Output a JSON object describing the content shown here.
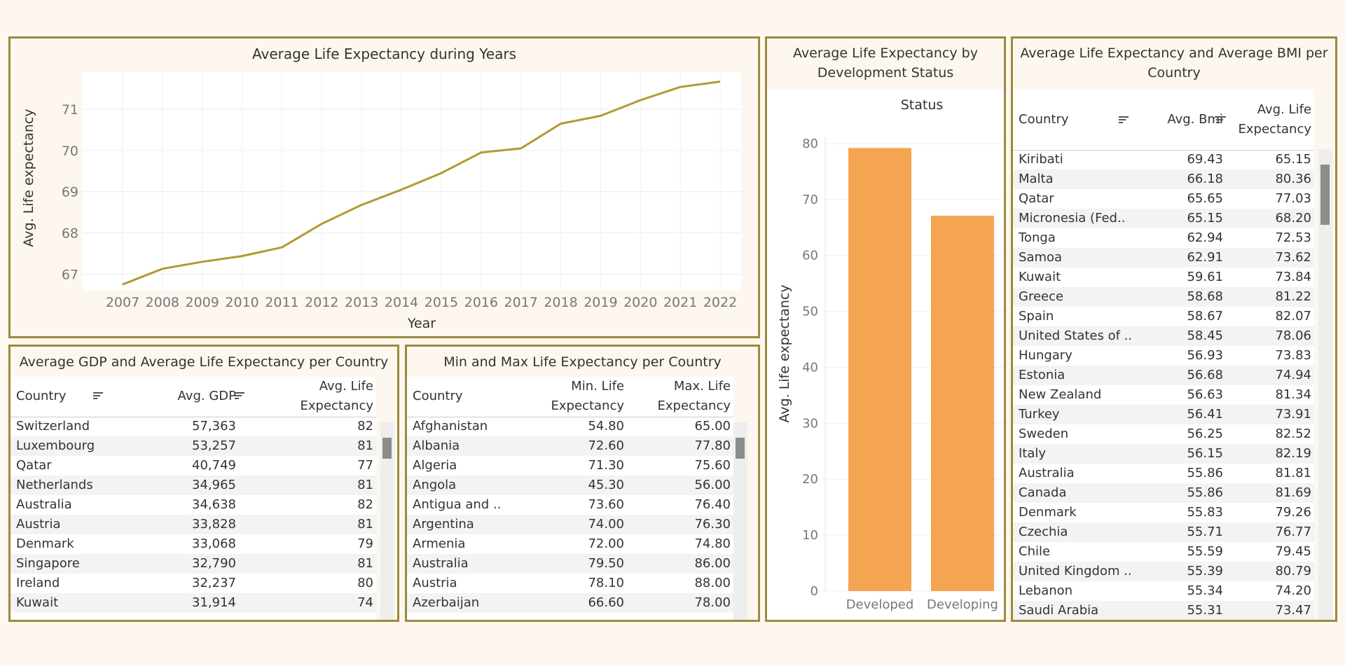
{
  "colors": {
    "frame": "#9c8a3e",
    "line": "#b3992f",
    "bar": "#f5a552"
  },
  "line_chart": {
    "title": "Average Life Expectancy during Years",
    "xlabel": "Year",
    "ylabel": "Avg. Life expectancy",
    "yticks": [
      "67",
      "68",
      "69",
      "70",
      "71"
    ],
    "xticks": [
      "2007",
      "2008",
      "2009",
      "2010",
      "2011",
      "2012",
      "2013",
      "2014",
      "2015",
      "2016",
      "2017",
      "2018",
      "2019",
      "2020",
      "2021",
      "2022"
    ]
  },
  "bar_chart": {
    "title_line1": "Average Life Expectancy by",
    "title_line2": "Development Status",
    "header": "Status",
    "ylabel": "Avg. Life expectancy",
    "yticks": [
      "0",
      "10",
      "20",
      "30",
      "40",
      "50",
      "60",
      "70",
      "80"
    ],
    "categories": [
      "Developed",
      "Developing"
    ]
  },
  "chart_data": [
    {
      "type": "line",
      "title": "Average Life Expectancy during Years",
      "xlabel": "Year",
      "ylabel": "Avg. Life expectancy",
      "x": [
        2007,
        2008,
        2009,
        2010,
        2011,
        2012,
        2013,
        2014,
        2015,
        2016,
        2017,
        2018,
        2019,
        2020,
        2021,
        2022
      ],
      "y": [
        66.75,
        67.13,
        67.3,
        67.44,
        67.65,
        68.22,
        68.68,
        69.05,
        69.45,
        69.95,
        70.05,
        70.65,
        70.84,
        71.22,
        71.54,
        71.67
      ],
      "ylim": [
        66.6,
        71.9
      ],
      "grid": true
    },
    {
      "type": "bar",
      "title": "Average Life Expectancy by Development Status",
      "xlabel": "Status",
      "ylabel": "Avg. Life expectancy",
      "categories": [
        "Developed",
        "Developing"
      ],
      "values": [
        79.2,
        67.1
      ],
      "ylim": [
        0,
        84
      ]
    }
  ],
  "gdp_table": {
    "title": "Average GDP and Average Life Expectancy per Country",
    "headers": [
      "Country",
      "Avg. GDP",
      "Avg. Life",
      "Expectancy"
    ],
    "rows": [
      [
        "Switzerland",
        "57,363",
        "82"
      ],
      [
        "Luxembourg",
        "53,257",
        "81"
      ],
      [
        "Qatar",
        "40,749",
        "77"
      ],
      [
        "Netherlands",
        "34,965",
        "81"
      ],
      [
        "Australia",
        "34,638",
        "82"
      ],
      [
        "Austria",
        "33,828",
        "81"
      ],
      [
        "Denmark",
        "33,068",
        "79"
      ],
      [
        "Singapore",
        "32,790",
        "81"
      ],
      [
        "Ireland",
        "32,237",
        "80"
      ],
      [
        "Kuwait",
        "31,914",
        "74"
      ]
    ]
  },
  "minmax_table": {
    "title": "Min and Max Life Expectancy per Country",
    "headers": [
      "Country",
      "Min. Life",
      "Expectancy",
      "Max. Life",
      "Expectancy"
    ],
    "rows": [
      [
        "Afghanistan",
        "54.80",
        "65.00"
      ],
      [
        "Albania",
        "72.60",
        "77.80"
      ],
      [
        "Algeria",
        "71.30",
        "75.60"
      ],
      [
        "Angola",
        "45.30",
        "56.00"
      ],
      [
        "Antigua and ..",
        "73.60",
        "76.40"
      ],
      [
        "Argentina",
        "74.00",
        "76.30"
      ],
      [
        "Armenia",
        "72.00",
        "74.80"
      ],
      [
        "Australia",
        "79.50",
        "86.00"
      ],
      [
        "Austria",
        "78.10",
        "88.00"
      ],
      [
        "Azerbaijan",
        "66.60",
        "78.00"
      ]
    ]
  },
  "bmi_table": {
    "title_line1": "Average Life Expectancy and Average BMI per",
    "title_line2": "Country",
    "headers": [
      "Country",
      "Avg. Bmi",
      "Avg. Life",
      "Expectancy"
    ],
    "rows": [
      [
        "Kiribati",
        "69.43",
        "65.15"
      ],
      [
        "Malta",
        "66.18",
        "80.36"
      ],
      [
        "Qatar",
        "65.65",
        "77.03"
      ],
      [
        "Micronesia (Fed..",
        "65.15",
        "68.20"
      ],
      [
        "Tonga",
        "62.94",
        "72.53"
      ],
      [
        "Samoa",
        "62.91",
        "73.62"
      ],
      [
        "Kuwait",
        "59.61",
        "73.84"
      ],
      [
        "Greece",
        "58.68",
        "81.22"
      ],
      [
        "Spain",
        "58.67",
        "82.07"
      ],
      [
        "United States of ..",
        "58.45",
        "78.06"
      ],
      [
        "Hungary",
        "56.93",
        "73.83"
      ],
      [
        "Estonia",
        "56.68",
        "74.94"
      ],
      [
        "New Zealand",
        "56.63",
        "81.34"
      ],
      [
        "Turkey",
        "56.41",
        "73.91"
      ],
      [
        "Sweden",
        "56.25",
        "82.52"
      ],
      [
        "Italy",
        "56.15",
        "82.19"
      ],
      [
        "Australia",
        "55.86",
        "81.81"
      ],
      [
        "Canada",
        "55.86",
        "81.69"
      ],
      [
        "Denmark",
        "55.83",
        "79.26"
      ],
      [
        "Czechia",
        "55.71",
        "76.77"
      ],
      [
        "Chile",
        "55.59",
        "79.45"
      ],
      [
        "United Kingdom ..",
        "55.39",
        "80.79"
      ],
      [
        "Lebanon",
        "55.34",
        "74.20"
      ],
      [
        "Saudi Arabia",
        "55.31",
        "73.47"
      ]
    ]
  }
}
